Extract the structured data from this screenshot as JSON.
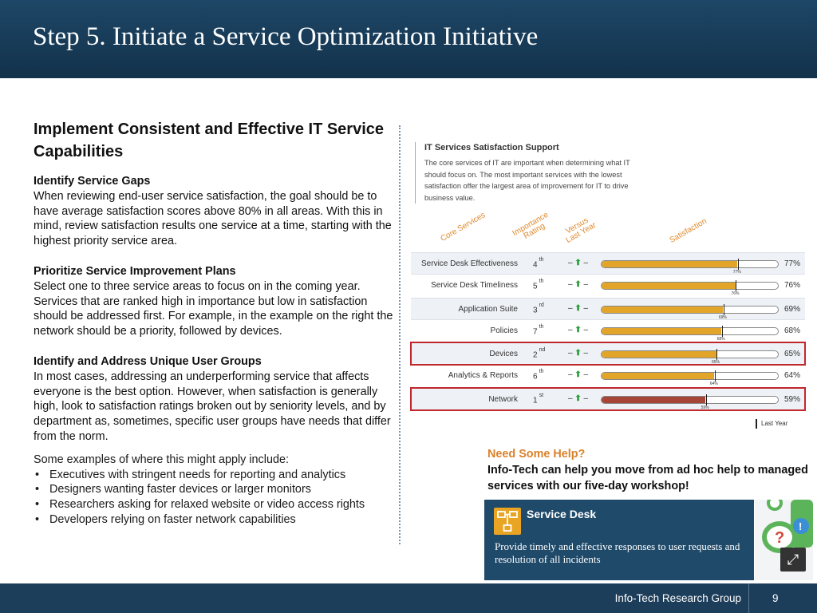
{
  "header": {
    "title": "Step 5. Initiate a Service Optimization Initiative"
  },
  "left": {
    "heading": "Implement Consistent and Effective IT Service Capabilities",
    "sections": [
      {
        "title": "Identify Service Gaps",
        "body": "When reviewing end-user service satisfaction, the goal should be to have average satisfaction scores above 80% in all areas. With this in mind, review satisfaction results one service at a time, starting with the highest priority service area."
      },
      {
        "title": "Prioritize Service Improvement Plans",
        "body": "Select one to three service areas to focus on in the coming year. Services that are ranked high in importance but low in satisfaction should be addressed first. For example, in the example on the right the network should be a priority, followed by devices."
      },
      {
        "title": "Identify and Address Unique User Groups",
        "body": "In most cases, addressing an underperforming service that affects everyone is the best option. However, when satisfaction is generally high, look to satisfaction ratings broken out by seniority levels, and by department as, sometimes, specific user groups have needs that differ from the norm."
      }
    ],
    "examples_intro": "Some examples of where this might apply include:",
    "examples": [
      "Executives with stringent needs for reporting and analytics",
      "Designers wanting faster devices or larger monitors",
      "Researchers asking for relaxed website or video access rights",
      "Developers relying on faster network capabilities"
    ]
  },
  "chart_data": {
    "type": "bar",
    "title": "IT Services Satisfaction Support",
    "subtitle": "The core services of IT are important when determining what IT should focus on. The most important services with the lowest satisfaction offer the largest area of improvement for IT to drive business value.",
    "columns": {
      "service": "Core Services",
      "importance_1": "Importance",
      "importance_2": "Rating",
      "versus_1": "Versus",
      "versus_2": "Last Year",
      "satisfaction": "Satisfaction"
    },
    "categories": [
      "Service Desk Effectiveness",
      "Service Desk Timeliness",
      "Application Suite",
      "Policies",
      "Devices",
      "Analytics & Reports",
      "Network"
    ],
    "importance_rank": [
      "4",
      "5",
      "3",
      "7",
      "2",
      "6",
      "1"
    ],
    "importance_suffix": [
      "th",
      "th",
      "rd",
      "th",
      "nd",
      "th",
      "st"
    ],
    "versus_last_year": [
      "– ⬆ –",
      "– ⬆ –",
      "– ⬆ –",
      "– ⬆ –",
      "– ⬆ –",
      "– ⬆ –",
      "– ⬆ –"
    ],
    "values": [
      77,
      76,
      69,
      68,
      65,
      64,
      59
    ],
    "value_labels": [
      "77%",
      "76%",
      "69%",
      "68%",
      "65%",
      "64%",
      "59%"
    ],
    "last_year": [
      77,
      76,
      69,
      68,
      65,
      64,
      59
    ],
    "last_year_labels": [
      "77%",
      "76%",
      "69%",
      "68%",
      "65%",
      "64%",
      "59%"
    ],
    "highlighted": [
      "Devices",
      "Network"
    ],
    "xlim": [
      0,
      100
    ],
    "colors": {
      "bar": "#e2a52a",
      "bar_low": "#a64639",
      "highlight_border": "#c0282d"
    },
    "legend": "Last Year"
  },
  "help": {
    "title": "Need Some Help?",
    "body": "Info-Tech can help you move from ad hoc help to managed services with our five-day workshop!"
  },
  "card": {
    "title": "Service Desk",
    "text": "Provide timely and effective responses to user requests and resolution of all incidents",
    "icon": "network-icon"
  },
  "footer": {
    "org": "Info-Tech Research Group",
    "page": "9"
  }
}
